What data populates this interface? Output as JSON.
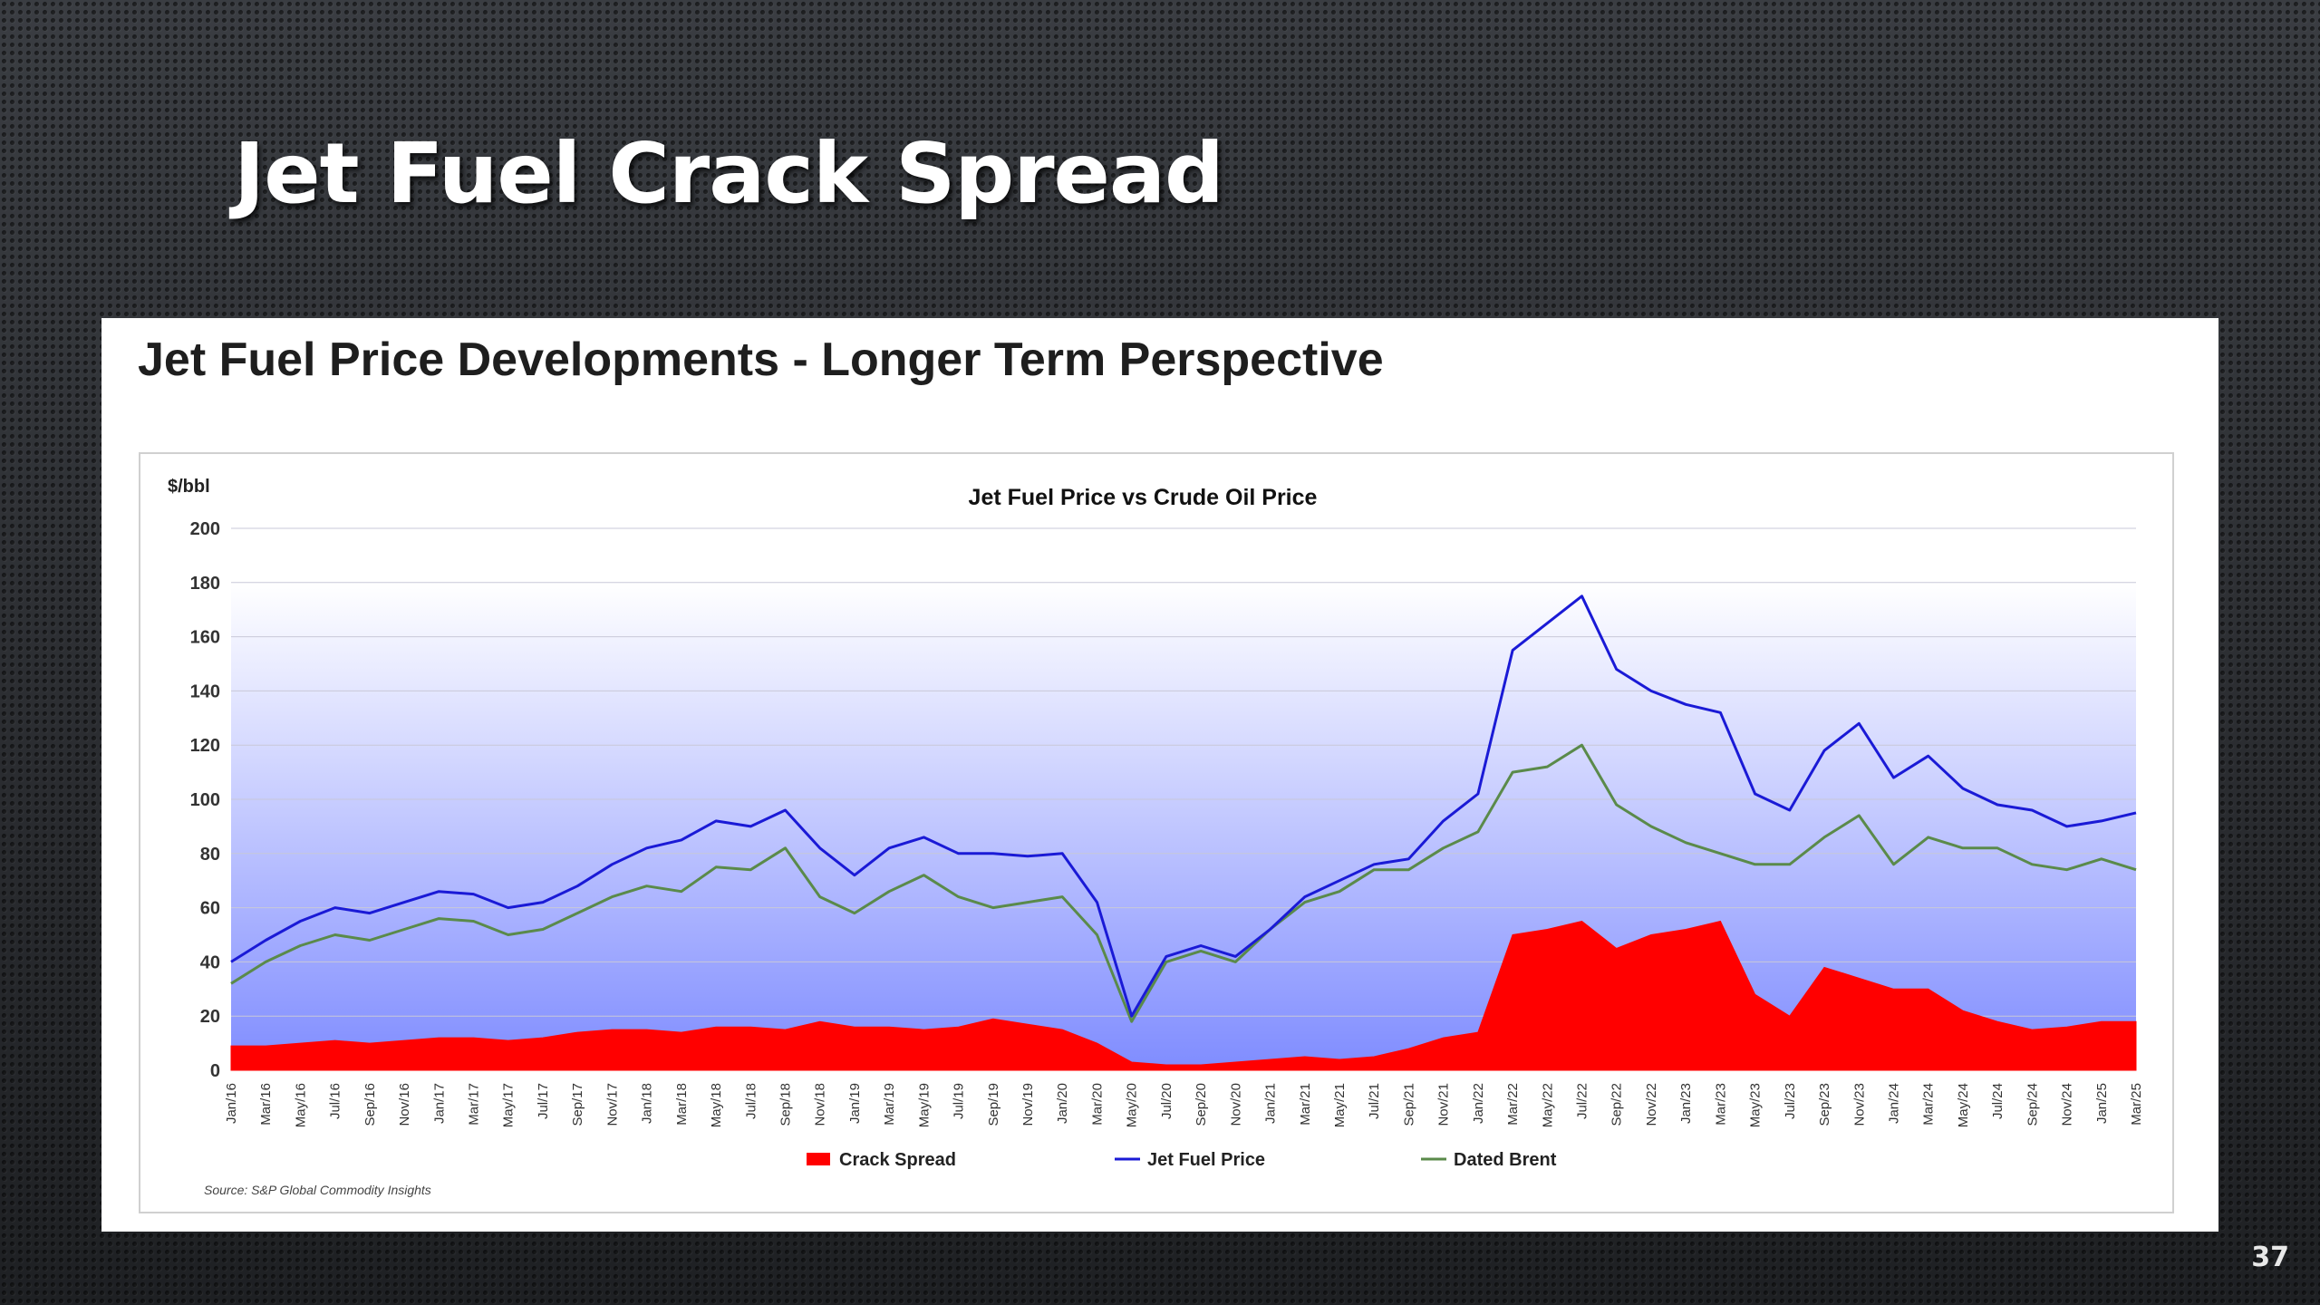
{
  "slide": {
    "title": "Jet Fuel Crack Spread",
    "page_number": "37"
  },
  "panel": {
    "heading": "Jet Fuel Price Developments - Longer Term Perspective"
  },
  "colors": {
    "crack_spread": "#ff0000",
    "jet_fuel": "#1a1ad6",
    "dated_brent": "#5a8a4a",
    "plot_bg_top": "#ffffff",
    "plot_bg_bottom": "#7f8cff"
  },
  "chart_data": {
    "type": "line",
    "title": "Jet Fuel Price vs Crude Oil Price",
    "ylabel": "$/bbl",
    "xlabel": "",
    "ylim": [
      0,
      200
    ],
    "yticks": [
      0,
      20,
      40,
      60,
      80,
      100,
      120,
      140,
      160,
      180,
      200
    ],
    "source": "Source: S&P Global Commodity Insights",
    "legend": [
      "Crack Spread",
      "Jet Fuel Price",
      "Dated Brent"
    ],
    "categories": [
      "Jan/16",
      "Mar/16",
      "May/16",
      "Jul/16",
      "Sep/16",
      "Nov/16",
      "Jan/17",
      "Mar/17",
      "May/17",
      "Jul/17",
      "Sep/17",
      "Nov/17",
      "Jan/18",
      "Mar/18",
      "May/18",
      "Jul/18",
      "Sep/18",
      "Nov/18",
      "Jan/19",
      "Mar/19",
      "May/19",
      "Jul/19",
      "Sep/19",
      "Nov/19",
      "Jan/20",
      "Mar/20",
      "May/20",
      "Jul/20",
      "Sep/20",
      "Nov/20",
      "Jan/21",
      "Mar/21",
      "May/21",
      "Jul/21",
      "Sep/21",
      "Nov/21",
      "Jan/22",
      "Mar/22",
      "May/22",
      "Jul/22",
      "Sep/22",
      "Nov/22",
      "Jan/23",
      "Mar/23",
      "May/23",
      "Jul/23",
      "Sep/23",
      "Nov/23",
      "Jan/24",
      "Mar/24",
      "May/24",
      "Jul/24",
      "Sep/24",
      "Nov/24",
      "Jan/25",
      "Mar/25"
    ],
    "series": [
      {
        "name": "Jet Fuel Price",
        "type": "line",
        "values": [
          40,
          48,
          55,
          60,
          58,
          62,
          66,
          65,
          60,
          62,
          68,
          76,
          82,
          85,
          92,
          90,
          96,
          82,
          72,
          82,
          86,
          80,
          80,
          79,
          80,
          62,
          20,
          42,
          46,
          42,
          52,
          64,
          70,
          76,
          78,
          92,
          102,
          155,
          165,
          175,
          148,
          140,
          135,
          132,
          102,
          96,
          118,
          128,
          108,
          116,
          104,
          98,
          96,
          90,
          92,
          95
        ]
      },
      {
        "name": "Dated Brent",
        "type": "line",
        "values": [
          32,
          40,
          46,
          50,
          48,
          52,
          56,
          55,
          50,
          52,
          58,
          64,
          68,
          66,
          75,
          74,
          82,
          64,
          58,
          66,
          72,
          64,
          60,
          62,
          64,
          50,
          18,
          40,
          44,
          40,
          52,
          62,
          66,
          74,
          74,
          82,
          88,
          110,
          112,
          120,
          98,
          90,
          84,
          80,
          76,
          76,
          86,
          94,
          76,
          86,
          82,
          82,
          76,
          74,
          78,
          74
        ]
      },
      {
        "name": "Crack Spread",
        "type": "area",
        "values": [
          9,
          9,
          10,
          11,
          10,
          11,
          12,
          12,
          11,
          12,
          14,
          15,
          15,
          14,
          16,
          16,
          15,
          18,
          16,
          16,
          15,
          16,
          19,
          17,
          15,
          10,
          3,
          2,
          2,
          3,
          4,
          5,
          4,
          5,
          8,
          12,
          14,
          50,
          52,
          55,
          45,
          50,
          52,
          55,
          28,
          20,
          38,
          34,
          30,
          30,
          22,
          18,
          15,
          16,
          18,
          18
        ]
      }
    ]
  }
}
